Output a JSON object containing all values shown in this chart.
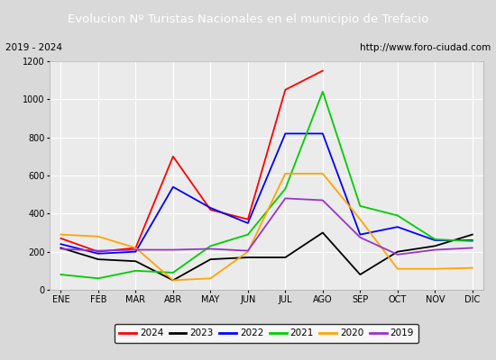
{
  "title": "Evolucion Nº Turistas Nacionales en el municipio de Trefacio",
  "subtitle_left": "2019 - 2024",
  "subtitle_right": "http://www.foro-ciudad.com",
  "title_bg_color": "#4f81bd",
  "title_text_color": "#ffffff",
  "outer_bg_color": "#d9d9d9",
  "plot_bg_color": "#ebebeb",
  "months": [
    "ENE",
    "FEB",
    "MAR",
    "ABR",
    "MAY",
    "JUN",
    "JUL",
    "AGO",
    "SEP",
    "OCT",
    "NOV",
    "DIC"
  ],
  "ylim": [
    0,
    1200
  ],
  "yticks": [
    0,
    200,
    400,
    600,
    800,
    1000,
    1200
  ],
  "series": {
    "2024": {
      "color": "#ff0000",
      "values": [
        270,
        200,
        220,
        700,
        420,
        370,
        1050,
        1150,
        null,
        null,
        null,
        null
      ]
    },
    "2023": {
      "color": "#000000",
      "values": [
        220,
        160,
        150,
        50,
        160,
        170,
        170,
        300,
        80,
        200,
        230,
        290
      ]
    },
    "2022": {
      "color": "#0000ff",
      "values": [
        240,
        190,
        200,
        540,
        430,
        350,
        820,
        820,
        290,
        330,
        260,
        260
      ]
    },
    "2021": {
      "color": "#00cc00",
      "values": [
        80,
        60,
        100,
        90,
        230,
        290,
        530,
        1040,
        440,
        390,
        265,
        255
      ]
    },
    "2020": {
      "color": "#ffa500",
      "values": [
        290,
        280,
        220,
        50,
        60,
        200,
        610,
        610,
        370,
        110,
        110,
        115
      ]
    },
    "2019": {
      "color": "#9933cc",
      "values": [
        215,
        205,
        210,
        210,
        215,
        205,
        480,
        470,
        275,
        185,
        210,
        220
      ]
    }
  },
  "legend_order": [
    "2024",
    "2023",
    "2022",
    "2021",
    "2020",
    "2019"
  ]
}
